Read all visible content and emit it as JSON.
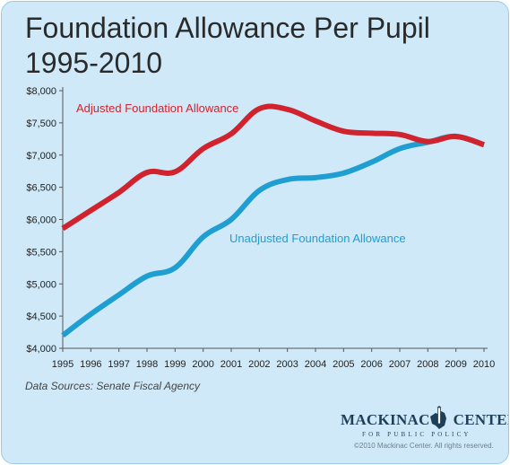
{
  "title_line1": "Foundation Allowance Per Pupil",
  "title_line2": "1995-2010",
  "source": "Data Sources: Senate Fiscal Agency",
  "logo": {
    "name_part1": "MACKINAC",
    "name_part2": "CENTER",
    "subtitle": "FOR PUBLIC POLICY"
  },
  "copyright": "©2010 Mackinac Center. All rights reserved.",
  "colors": {
    "background": "#cfe9f8",
    "adjusted": "#d0232d",
    "unadjusted": "#1f9ed1",
    "logo": "#1f3e59"
  },
  "chart_data": {
    "type": "line",
    "title": "Foundation Allowance Per Pupil 1995-2010",
    "xlabel": "",
    "ylabel": "",
    "x": [
      "1995",
      "1996",
      "1997",
      "1998",
      "1999",
      "2000",
      "2001",
      "2002",
      "2003",
      "2004",
      "2005",
      "2006",
      "2007",
      "2008",
      "2009",
      "2010"
    ],
    "ylim": [
      4000,
      8000
    ],
    "yticks": [
      "$4,000",
      "$4,500",
      "$5,000",
      "$5,500",
      "$6,000",
      "$6,500",
      "$7,000",
      "$7,500",
      "$8,000"
    ],
    "grid": false,
    "series": [
      {
        "name": "Adjusted Foundation Allowance",
        "color": "#d0232d",
        "values": [
          5860,
          6140,
          6420,
          6730,
          6740,
          7100,
          7330,
          7720,
          7710,
          7530,
          7370,
          7340,
          7320,
          7210,
          7290,
          7160
        ]
      },
      {
        "name": "Unadjusted Foundation Allowance",
        "color": "#1f9ed1",
        "values": [
          4200,
          4530,
          4830,
          5120,
          5250,
          5730,
          6000,
          6450,
          6620,
          6650,
          6720,
          6890,
          7100,
          7200,
          7290,
          7160
        ]
      }
    ]
  }
}
